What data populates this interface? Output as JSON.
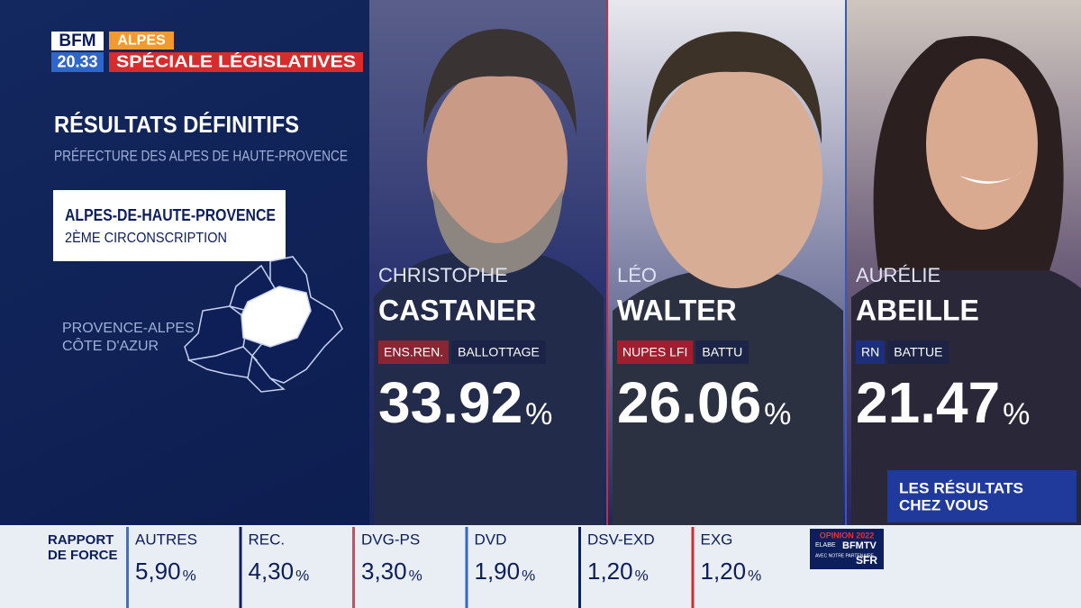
{
  "header": {
    "channel": "BFM",
    "region": "ALPES",
    "time": "20.33",
    "program": "SPÉCIALE LÉGISLATIVES"
  },
  "results": {
    "title": "RÉSULTATS DÉFINITIFS",
    "source": "PRÉFECTURE DES ALPES DE HAUTE-PROVENCE",
    "department": "ALPES-DE-HAUTE-PROVENCE",
    "constituency": "2ÈME CIRCONSCRIPTION",
    "map_label": [
      "PROVENCE-ALPES",
      "CÔTE D'AZUR"
    ]
  },
  "candidates": [
    {
      "first_name": "CHRISTOPHE",
      "last_name": "CASTANER",
      "party": "ENS.REN.",
      "status": "BALLOTTAGE",
      "score": "33.92",
      "unit": "%"
    },
    {
      "first_name": "LÉO",
      "last_name": "WALTER",
      "party": "NUPES LFI",
      "status": "BATTU",
      "score": "26.06",
      "unit": "%"
    },
    {
      "first_name": "AURÉLIE",
      "last_name": "ABEILLE",
      "party": "RN",
      "status": "BATTUE",
      "score": "21.47",
      "unit": "%"
    }
  ],
  "promo": [
    "LES RÉSULTATS",
    "CHEZ VOUS"
  ],
  "ticker": {
    "title": [
      "RAPPORT",
      "DE FORCE"
    ],
    "items": [
      {
        "label": "AUTRES",
        "value": "5,90",
        "unit": "%"
      },
      {
        "label": "REC.",
        "value": "4,30",
        "unit": "%"
      },
      {
        "label": "DVG-PS",
        "value": "3,30",
        "unit": "%"
      },
      {
        "label": "DVD",
        "value": "1,90",
        "unit": "%"
      },
      {
        "label": "DSV-EXD",
        "value": "1,20",
        "unit": "%"
      },
      {
        "label": "EXG",
        "value": "1,20",
        "unit": "%"
      }
    ],
    "sponsor": {
      "title": "OPINION 2022",
      "partner": "ELABE",
      "brand": "BFMTV",
      "note": "AVEC NOTRE PARTENAIRE",
      "operator": "SFR"
    }
  }
}
